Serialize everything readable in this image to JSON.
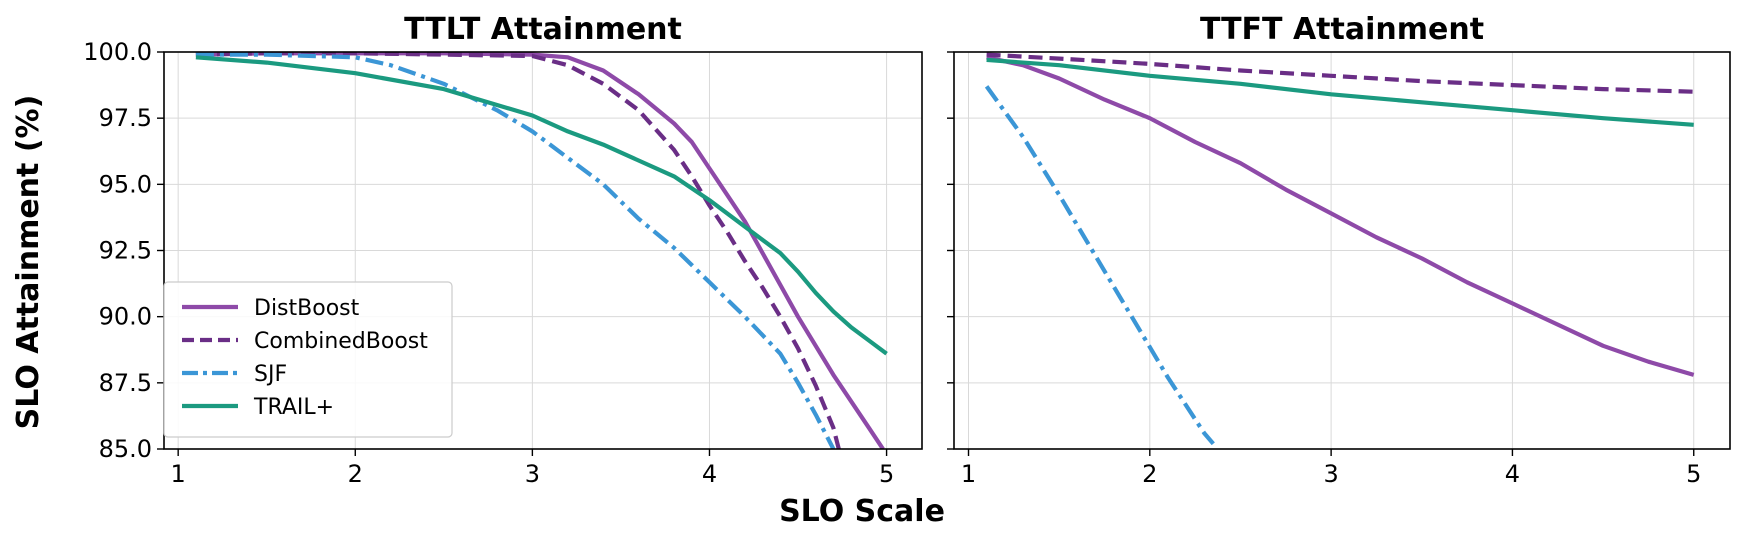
{
  "chart_data": [
    {
      "type": "line",
      "title": "TTLT Attainment",
      "xlim": [
        0.92,
        5.2
      ],
      "ylim": [
        85.0,
        100.0
      ],
      "xticks": [
        1,
        2,
        3,
        4,
        5
      ],
      "yticks": [
        85.0,
        87.5,
        90.0,
        92.5,
        95.0,
        97.5,
        100.0
      ],
      "ytick_labels": [
        "85.0",
        "87.5",
        "90.0",
        "92.5",
        "95.0",
        "97.5",
        "100.0"
      ],
      "grid": true,
      "legend_position": "lower-left",
      "series": [
        {
          "name": "DistBoost",
          "color": "#8e4aa8",
          "style": "solid",
          "x": [
            1.1,
            1.5,
            2.0,
            2.5,
            3.0,
            3.2,
            3.4,
            3.6,
            3.8,
            3.9,
            4.0,
            4.1,
            4.2,
            4.3,
            4.4,
            4.5,
            4.6,
            4.7,
            4.8,
            4.9,
            4.98
          ],
          "y": [
            99.9,
            99.95,
            99.95,
            99.95,
            99.9,
            99.8,
            99.3,
            98.4,
            97.3,
            96.6,
            95.6,
            94.6,
            93.6,
            92.4,
            91.2,
            90.0,
            88.9,
            87.8,
            86.8,
            85.8,
            85.0
          ]
        },
        {
          "name": "CombinedBoost",
          "color": "#6a2e86",
          "style": "dashed",
          "x": [
            1.1,
            1.5,
            2.0,
            2.5,
            3.0,
            3.2,
            3.4,
            3.6,
            3.8,
            3.9,
            4.0,
            4.1,
            4.2,
            4.3,
            4.4,
            4.5,
            4.6,
            4.7,
            4.73
          ],
          "y": [
            99.9,
            99.95,
            99.95,
            99.9,
            99.85,
            99.5,
            98.8,
            97.8,
            96.3,
            95.3,
            94.2,
            93.2,
            92.1,
            91.1,
            90.0,
            88.8,
            87.4,
            85.8,
            85.0
          ]
        },
        {
          "name": "SJF",
          "color": "#3b96d6",
          "style": "dashdot",
          "x": [
            1.1,
            1.5,
            2.0,
            2.2,
            2.5,
            2.8,
            3.0,
            3.2,
            3.4,
            3.6,
            3.8,
            4.0,
            4.2,
            4.4,
            4.5,
            4.6,
            4.7
          ],
          "y": [
            99.9,
            99.9,
            99.8,
            99.5,
            98.8,
            97.8,
            97.0,
            96.0,
            95.0,
            93.7,
            92.6,
            91.3,
            90.0,
            88.6,
            87.5,
            86.3,
            85.0
          ]
        },
        {
          "name": "TRAIL+",
          "color": "#1b9a80",
          "style": "solid",
          "x": [
            1.1,
            1.5,
            2.0,
            2.5,
            3.0,
            3.2,
            3.4,
            3.6,
            3.8,
            4.0,
            4.2,
            4.4,
            4.5,
            4.6,
            4.7,
            4.8,
            4.9,
            5.0
          ],
          "y": [
            99.8,
            99.6,
            99.2,
            98.6,
            97.6,
            97.0,
            96.5,
            95.9,
            95.3,
            94.4,
            93.4,
            92.4,
            91.7,
            90.9,
            90.2,
            89.6,
            89.1,
            88.6
          ]
        }
      ]
    },
    {
      "type": "line",
      "title": "TTFT Attainment",
      "xlim": [
        0.92,
        5.2
      ],
      "ylim": [
        85.0,
        100.0
      ],
      "xticks": [
        1,
        2,
        3,
        4,
        5
      ],
      "yticks": [
        85.0,
        87.5,
        90.0,
        92.5,
        95.0,
        97.5,
        100.0
      ],
      "grid": true,
      "series": [
        {
          "name": "DistBoost",
          "color": "#8e4aa8",
          "style": "solid",
          "x": [
            1.1,
            1.3,
            1.5,
            1.75,
            2.0,
            2.25,
            2.5,
            2.75,
            3.0,
            3.25,
            3.5,
            3.75,
            4.0,
            4.25,
            4.5,
            4.75,
            5.0
          ],
          "y": [
            99.8,
            99.5,
            99.0,
            98.2,
            97.5,
            96.6,
            95.8,
            94.8,
            93.9,
            93.0,
            92.2,
            91.3,
            90.5,
            89.7,
            88.9,
            88.3,
            87.8
          ]
        },
        {
          "name": "CombinedBoost",
          "color": "#6a2e86",
          "style": "dashed",
          "x": [
            1.1,
            1.5,
            2.0,
            2.5,
            3.0,
            3.5,
            4.0,
            4.5,
            5.0
          ],
          "y": [
            99.9,
            99.75,
            99.55,
            99.3,
            99.1,
            98.9,
            98.75,
            98.6,
            98.5
          ]
        },
        {
          "name": "SJF",
          "color": "#3b96d6",
          "style": "dashdot",
          "x": [
            1.1,
            1.3,
            1.5,
            1.7,
            1.9,
            2.1,
            2.3,
            2.35
          ],
          "y": [
            98.7,
            96.8,
            94.6,
            92.3,
            90.0,
            87.7,
            85.6,
            85.2
          ]
        },
        {
          "name": "TRAIL+",
          "color": "#1b9a80",
          "style": "solid",
          "x": [
            1.1,
            1.5,
            2.0,
            2.5,
            3.0,
            3.5,
            4.0,
            4.5,
            5.0
          ],
          "y": [
            99.7,
            99.5,
            99.1,
            98.8,
            98.4,
            98.1,
            97.8,
            97.5,
            97.25
          ]
        }
      ]
    }
  ],
  "shared": {
    "xlabel": "SLO Scale",
    "ylabel": "SLO Attainment (%)",
    "legend": [
      "DistBoost",
      "CombinedBoost",
      "SJF",
      "TRAIL+"
    ]
  }
}
